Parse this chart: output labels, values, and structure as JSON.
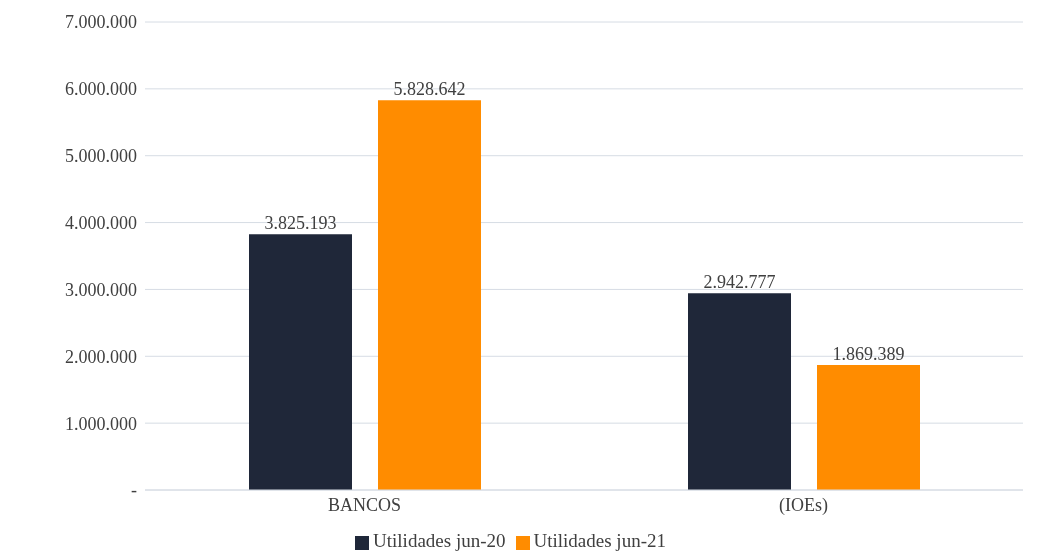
{
  "chart_data": {
    "type": "bar",
    "categories": [
      "BANCOS",
      "(IOEs)"
    ],
    "series": [
      {
        "name": "Utilidades  jun-20",
        "color": "#1f2739",
        "values": [
          3825193,
          2942777
        ],
        "value_labels": [
          "3.825.193",
          "2.942.777"
        ]
      },
      {
        "name": "Utilidades  jun-21",
        "color": "#ff8c00",
        "values": [
          5828642,
          1869389
        ],
        "value_labels": [
          "5.828.642",
          "1.869.389"
        ]
      }
    ],
    "ylim": [
      0,
      7000000
    ],
    "yticks": [
      {
        "value": 0,
        "label": "-"
      },
      {
        "value": 1000000,
        "label": "1.000.000"
      },
      {
        "value": 2000000,
        "label": "2.000.000"
      },
      {
        "value": 3000000,
        "label": "3.000.000"
      },
      {
        "value": 4000000,
        "label": "4.000.000"
      },
      {
        "value": 5000000,
        "label": "5.000.000"
      },
      {
        "value": 6000000,
        "label": "6.000.000"
      },
      {
        "value": 7000000,
        "label": "7.000.000"
      }
    ],
    "grid": "y",
    "legend": "bottom"
  }
}
